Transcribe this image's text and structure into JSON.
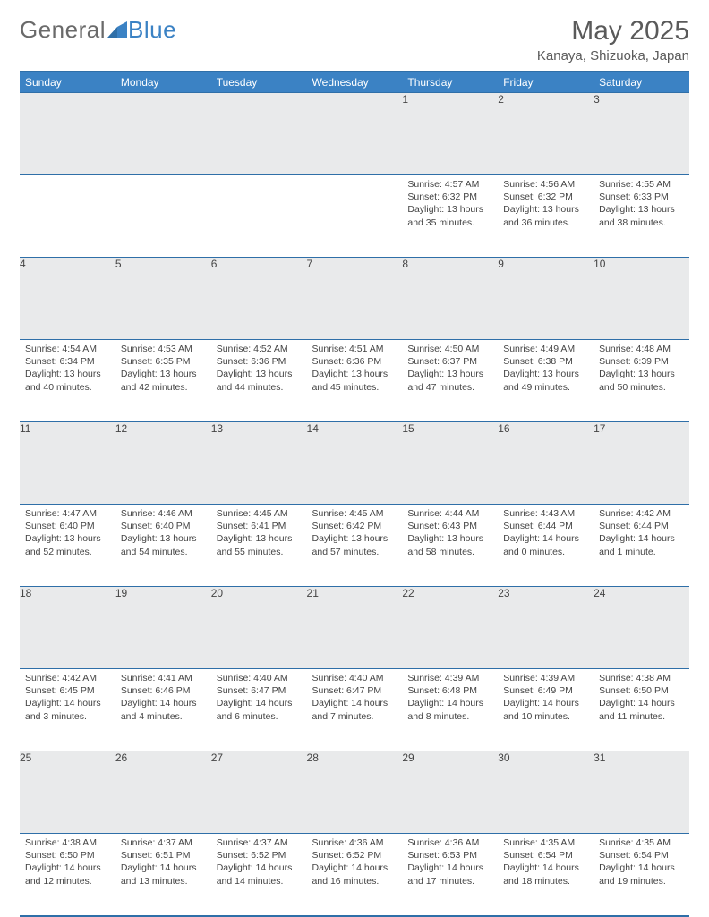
{
  "brand": {
    "word1": "General",
    "word2": "Blue"
  },
  "header": {
    "title": "May 2025",
    "location": "Kanaya, Shizuoka, Japan"
  },
  "colors": {
    "header_bg": "#3b82c4",
    "header_text": "#ffffff",
    "border": "#2f6fa8",
    "daynum_bg": "#e9eaeb",
    "text": "#444444",
    "logo_gray": "#6a6a6a",
    "logo_blue": "#3b82c4"
  },
  "weekdays": [
    "Sunday",
    "Monday",
    "Tuesday",
    "Wednesday",
    "Thursday",
    "Friday",
    "Saturday"
  ],
  "weeks": [
    [
      null,
      null,
      null,
      null,
      {
        "n": "1",
        "sr": "Sunrise: 4:57 AM",
        "ss": "Sunset: 6:32 PM",
        "d1": "Daylight: 13 hours",
        "d2": "and 35 minutes."
      },
      {
        "n": "2",
        "sr": "Sunrise: 4:56 AM",
        "ss": "Sunset: 6:32 PM",
        "d1": "Daylight: 13 hours",
        "d2": "and 36 minutes."
      },
      {
        "n": "3",
        "sr": "Sunrise: 4:55 AM",
        "ss": "Sunset: 6:33 PM",
        "d1": "Daylight: 13 hours",
        "d2": "and 38 minutes."
      }
    ],
    [
      {
        "n": "4",
        "sr": "Sunrise: 4:54 AM",
        "ss": "Sunset: 6:34 PM",
        "d1": "Daylight: 13 hours",
        "d2": "and 40 minutes."
      },
      {
        "n": "5",
        "sr": "Sunrise: 4:53 AM",
        "ss": "Sunset: 6:35 PM",
        "d1": "Daylight: 13 hours",
        "d2": "and 42 minutes."
      },
      {
        "n": "6",
        "sr": "Sunrise: 4:52 AM",
        "ss": "Sunset: 6:36 PM",
        "d1": "Daylight: 13 hours",
        "d2": "and 44 minutes."
      },
      {
        "n": "7",
        "sr": "Sunrise: 4:51 AM",
        "ss": "Sunset: 6:36 PM",
        "d1": "Daylight: 13 hours",
        "d2": "and 45 minutes."
      },
      {
        "n": "8",
        "sr": "Sunrise: 4:50 AM",
        "ss": "Sunset: 6:37 PM",
        "d1": "Daylight: 13 hours",
        "d2": "and 47 minutes."
      },
      {
        "n": "9",
        "sr": "Sunrise: 4:49 AM",
        "ss": "Sunset: 6:38 PM",
        "d1": "Daylight: 13 hours",
        "d2": "and 49 minutes."
      },
      {
        "n": "10",
        "sr": "Sunrise: 4:48 AM",
        "ss": "Sunset: 6:39 PM",
        "d1": "Daylight: 13 hours",
        "d2": "and 50 minutes."
      }
    ],
    [
      {
        "n": "11",
        "sr": "Sunrise: 4:47 AM",
        "ss": "Sunset: 6:40 PM",
        "d1": "Daylight: 13 hours",
        "d2": "and 52 minutes."
      },
      {
        "n": "12",
        "sr": "Sunrise: 4:46 AM",
        "ss": "Sunset: 6:40 PM",
        "d1": "Daylight: 13 hours",
        "d2": "and 54 minutes."
      },
      {
        "n": "13",
        "sr": "Sunrise: 4:45 AM",
        "ss": "Sunset: 6:41 PM",
        "d1": "Daylight: 13 hours",
        "d2": "and 55 minutes."
      },
      {
        "n": "14",
        "sr": "Sunrise: 4:45 AM",
        "ss": "Sunset: 6:42 PM",
        "d1": "Daylight: 13 hours",
        "d2": "and 57 minutes."
      },
      {
        "n": "15",
        "sr": "Sunrise: 4:44 AM",
        "ss": "Sunset: 6:43 PM",
        "d1": "Daylight: 13 hours",
        "d2": "and 58 minutes."
      },
      {
        "n": "16",
        "sr": "Sunrise: 4:43 AM",
        "ss": "Sunset: 6:44 PM",
        "d1": "Daylight: 14 hours",
        "d2": "and 0 minutes."
      },
      {
        "n": "17",
        "sr": "Sunrise: 4:42 AM",
        "ss": "Sunset: 6:44 PM",
        "d1": "Daylight: 14 hours",
        "d2": "and 1 minute."
      }
    ],
    [
      {
        "n": "18",
        "sr": "Sunrise: 4:42 AM",
        "ss": "Sunset: 6:45 PM",
        "d1": "Daylight: 14 hours",
        "d2": "and 3 minutes."
      },
      {
        "n": "19",
        "sr": "Sunrise: 4:41 AM",
        "ss": "Sunset: 6:46 PM",
        "d1": "Daylight: 14 hours",
        "d2": "and 4 minutes."
      },
      {
        "n": "20",
        "sr": "Sunrise: 4:40 AM",
        "ss": "Sunset: 6:47 PM",
        "d1": "Daylight: 14 hours",
        "d2": "and 6 minutes."
      },
      {
        "n": "21",
        "sr": "Sunrise: 4:40 AM",
        "ss": "Sunset: 6:47 PM",
        "d1": "Daylight: 14 hours",
        "d2": "and 7 minutes."
      },
      {
        "n": "22",
        "sr": "Sunrise: 4:39 AM",
        "ss": "Sunset: 6:48 PM",
        "d1": "Daylight: 14 hours",
        "d2": "and 8 minutes."
      },
      {
        "n": "23",
        "sr": "Sunrise: 4:39 AM",
        "ss": "Sunset: 6:49 PM",
        "d1": "Daylight: 14 hours",
        "d2": "and 10 minutes."
      },
      {
        "n": "24",
        "sr": "Sunrise: 4:38 AM",
        "ss": "Sunset: 6:50 PM",
        "d1": "Daylight: 14 hours",
        "d2": "and 11 minutes."
      }
    ],
    [
      {
        "n": "25",
        "sr": "Sunrise: 4:38 AM",
        "ss": "Sunset: 6:50 PM",
        "d1": "Daylight: 14 hours",
        "d2": "and 12 minutes."
      },
      {
        "n": "26",
        "sr": "Sunrise: 4:37 AM",
        "ss": "Sunset: 6:51 PM",
        "d1": "Daylight: 14 hours",
        "d2": "and 13 minutes."
      },
      {
        "n": "27",
        "sr": "Sunrise: 4:37 AM",
        "ss": "Sunset: 6:52 PM",
        "d1": "Daylight: 14 hours",
        "d2": "and 14 minutes."
      },
      {
        "n": "28",
        "sr": "Sunrise: 4:36 AM",
        "ss": "Sunset: 6:52 PM",
        "d1": "Daylight: 14 hours",
        "d2": "and 16 minutes."
      },
      {
        "n": "29",
        "sr": "Sunrise: 4:36 AM",
        "ss": "Sunset: 6:53 PM",
        "d1": "Daylight: 14 hours",
        "d2": "and 17 minutes."
      },
      {
        "n": "30",
        "sr": "Sunrise: 4:35 AM",
        "ss": "Sunset: 6:54 PM",
        "d1": "Daylight: 14 hours",
        "d2": "and 18 minutes."
      },
      {
        "n": "31",
        "sr": "Sunrise: 4:35 AM",
        "ss": "Sunset: 6:54 PM",
        "d1": "Daylight: 14 hours",
        "d2": "and 19 minutes."
      }
    ]
  ]
}
